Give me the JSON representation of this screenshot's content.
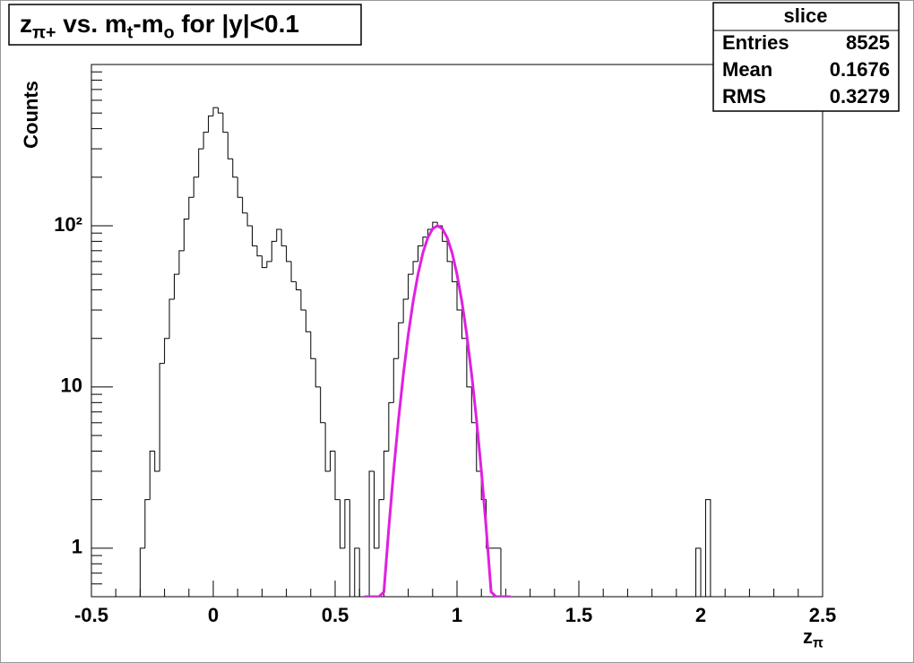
{
  "chart_data": {
    "type": "histogram",
    "title": [
      {
        "text": "z"
      },
      {
        "text": "π+",
        "sub": true
      },
      {
        "text": " vs. m"
      },
      {
        "text": "t",
        "sub": true
      },
      {
        "text": "-m"
      },
      {
        "text": "o",
        "sub": true
      },
      {
        "text": " for |y|<0.1"
      }
    ],
    "xlabel": [
      {
        "text": "z"
      },
      {
        "text": "π",
        "sub": true
      }
    ],
    "ylabel": "Counts",
    "logy": true,
    "color": "#000000",
    "xlim": [
      -0.5,
      2.5
    ],
    "ylim": [
      0.5,
      1000
    ],
    "xticks": [
      -0.5,
      0,
      0.5,
      1,
      1.5,
      2,
      2.5
    ],
    "xminorticks": [
      -0.4,
      -0.3,
      -0.2,
      -0.1,
      0.1,
      0.2,
      0.3,
      0.4,
      0.6,
      0.7,
      0.8,
      0.9,
      1.1,
      1.2,
      1.3,
      1.4,
      1.6,
      1.7,
      1.8,
      1.9,
      2.1,
      2.2,
      2.3,
      2.4
    ],
    "yticks": [
      1,
      10,
      {
        "value": 100,
        "label": "10²"
      }
    ],
    "yminorticks": [
      0.6,
      0.7,
      0.8,
      0.9,
      2,
      3,
      4,
      5,
      6,
      7,
      8,
      9,
      20,
      30,
      40,
      50,
      60,
      70,
      80,
      90,
      200,
      300,
      400,
      500,
      600,
      700,
      800,
      900
    ],
    "bins": [
      -0.3,
      -0.28,
      -0.26,
      -0.24,
      -0.22,
      -0.2,
      -0.18,
      -0.16,
      -0.14,
      -0.12,
      -0.1,
      -0.08,
      -0.06,
      -0.04,
      -0.02,
      0,
      0.02,
      0.04,
      0.06,
      0.08,
      0.1,
      0.12,
      0.14,
      0.16,
      0.18,
      0.2,
      0.22,
      0.24,
      0.26,
      0.28,
      0.3,
      0.32,
      0.34,
      0.36,
      0.38,
      0.4,
      0.42,
      0.44,
      0.46,
      0.48,
      0.5,
      0.52,
      0.54,
      0.56,
      0.58,
      0.6,
      0.62,
      0.64,
      0.66,
      0.68,
      0.7,
      0.72,
      0.74,
      0.76,
      0.78,
      0.8,
      0.82,
      0.84,
      0.86,
      0.88,
      0.9,
      0.92,
      0.94,
      0.96,
      0.98,
      1,
      1.02,
      1.04,
      1.06,
      1.08,
      1.1,
      1.12,
      1.14,
      1.16,
      1.18,
      1.2,
      1.22,
      1.24,
      1.26,
      1.28,
      1.3,
      1.32,
      1.34,
      1.36,
      1.38,
      1.4,
      1.42,
      1.44,
      1.46,
      1.48,
      1.5,
      1.52,
      1.54,
      1.56,
      1.58,
      1.6,
      1.62,
      1.64,
      1.66,
      1.68,
      1.7,
      1.72,
      1.74,
      1.76,
      1.78,
      1.8,
      1.82,
      1.84,
      1.86,
      1.88,
      1.9,
      1.92,
      1.94,
      1.96,
      1.98,
      2,
      2.02,
      2.04
    ],
    "values": [
      1,
      2,
      4,
      3,
      14,
      20,
      35,
      50,
      70,
      110,
      150,
      200,
      300,
      380,
      480,
      540,
      500,
      380,
      260,
      200,
      150,
      120,
      100,
      75,
      65,
      55,
      60,
      80,
      95,
      75,
      60,
      45,
      40,
      30,
      22,
      15,
      10,
      6,
      3,
      4,
      2,
      1,
      2,
      0,
      1,
      0,
      0,
      3,
      1,
      2,
      4,
      8,
      15,
      25,
      35,
      50,
      60,
      75,
      85,
      95,
      105,
      100,
      80,
      60,
      45,
      30,
      20,
      10,
      6,
      3,
      2,
      1,
      1,
      1,
      0,
      0,
      0,
      0,
      0,
      0,
      0,
      0,
      0,
      0,
      0,
      0,
      0,
      0,
      0,
      0,
      0,
      0,
      0,
      0,
      0,
      0,
      0,
      0,
      0,
      0,
      0,
      0,
      0,
      0,
      0,
      0,
      0,
      0,
      0,
      0,
      0,
      0,
      0,
      0,
      1,
      0,
      2
    ],
    "fit": {
      "color": "#e020e0",
      "x": [
        0.62,
        0.64,
        0.66,
        0.68,
        0.7,
        0.72,
        0.74,
        0.76,
        0.78,
        0.8,
        0.82,
        0.84,
        0.86,
        0.88,
        0.9,
        0.92,
        0.94,
        0.96,
        0.98,
        1,
        1.02,
        1.04,
        1.06,
        1.08,
        1.1,
        1.12,
        1.14,
        1.16,
        1.18,
        1.2,
        1.22
      ],
      "values": [
        0.0059,
        0.021,
        0.067,
        0.197,
        0.535,
        1.32,
        3.01,
        6.28,
        12.0,
        21.1,
        33.9,
        50.0,
        67.8,
        84.1,
        95.8,
        100,
        95.8,
        84.1,
        67.8,
        50.0,
        33.9,
        21.1,
        12.0,
        6.28,
        3.01,
        1.32,
        0.535,
        0.197,
        0.067,
        0.021,
        0.0059
      ]
    },
    "stats": {
      "title": "slice",
      "rows": [
        {
          "label": "Entries",
          "value": 8525
        },
        {
          "label": "Mean",
          "value": 0.1676
        },
        {
          "label": "RMS",
          "value": 0.3279
        }
      ]
    }
  }
}
